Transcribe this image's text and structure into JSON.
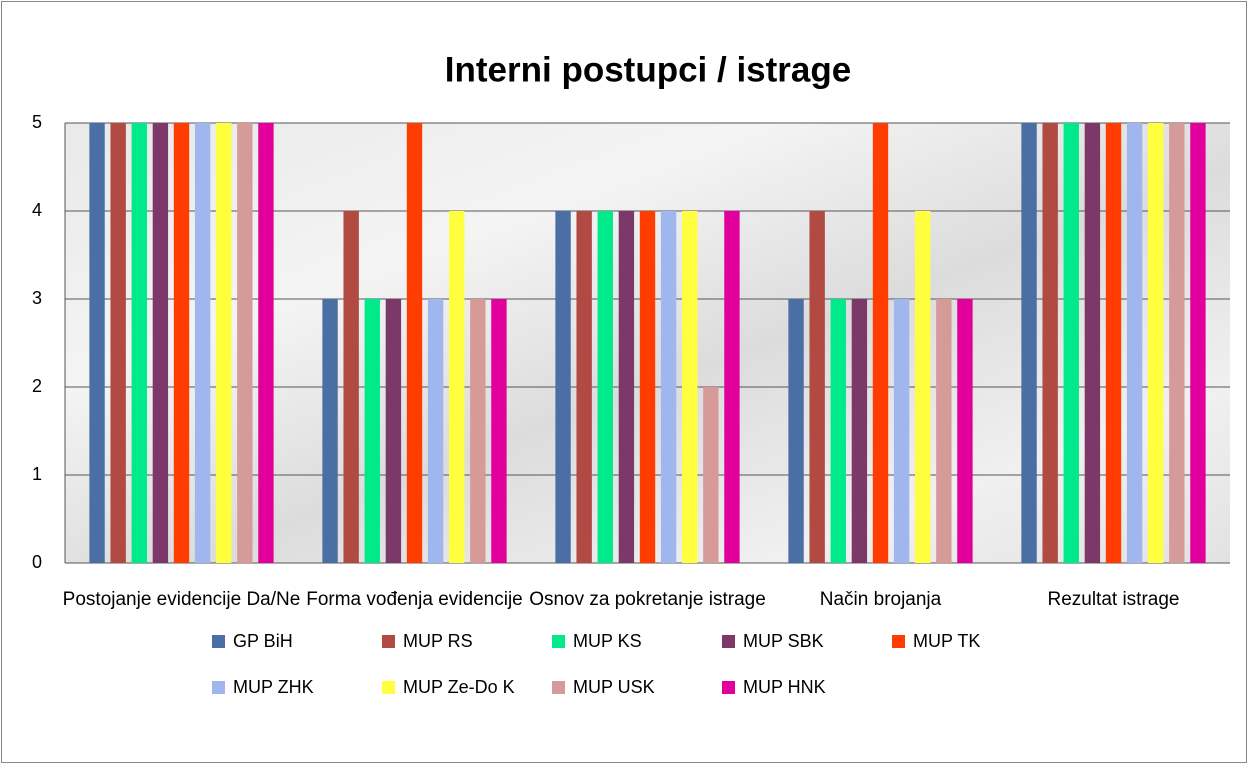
{
  "chart_data": {
    "type": "bar",
    "title": "Interni postupci / istrage",
    "categories": [
      "Postojanje evidencije Da/Ne",
      "Forma vođenja evidencije",
      "Osnov za pokretanje istrage",
      "Način brojanja",
      "Rezultat istrage"
    ],
    "series": [
      {
        "name": "GP BiH",
        "color": "#4a6fa5",
        "values": [
          5,
          3,
          4,
          3,
          5
        ]
      },
      {
        "name": "MUP RS",
        "color": "#b04a42",
        "values": [
          5,
          4,
          4,
          4,
          5
        ]
      },
      {
        "name": "MUP KS",
        "color": "#00ea8c",
        "values": [
          5,
          3,
          4,
          3,
          5
        ]
      },
      {
        "name": "MUP SBK",
        "color": "#7b3868",
        "values": [
          5,
          3,
          4,
          3,
          5
        ]
      },
      {
        "name": "MUP TK",
        "color": "#ff3d00",
        "values": [
          5,
          5,
          4,
          5,
          5
        ]
      },
      {
        "name": "MUP ZHK",
        "color": "#9fb6ef",
        "values": [
          5,
          3,
          4,
          3,
          5
        ]
      },
      {
        "name": "MUP Ze-Do K",
        "color": "#ffff40",
        "values": [
          5,
          4,
          4,
          4,
          5
        ]
      },
      {
        "name": "MUP USK",
        "color": "#d69a98",
        "values": [
          5,
          3,
          2,
          3,
          5
        ]
      },
      {
        "name": "MUP HNK",
        "color": "#e2009c",
        "values": [
          5,
          3,
          4,
          3,
          5
        ]
      }
    ],
    "ylim": [
      0,
      5
    ],
    "yticks": [
      0,
      1,
      2,
      3,
      4,
      5
    ],
    "grid": true
  }
}
